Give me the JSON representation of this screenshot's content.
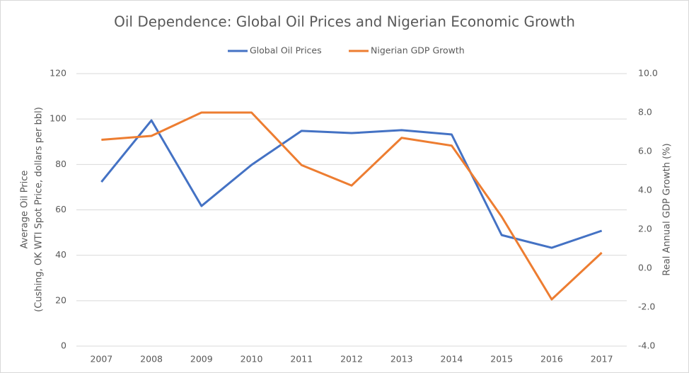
{
  "chart_data": {
    "type": "line",
    "title": "Oil Dependence:  Global Oil Prices and Nigerian Economic Growth",
    "categories": [
      "2007",
      "2008",
      "2009",
      "2010",
      "2011",
      "2012",
      "2013",
      "2014",
      "2015",
      "2016",
      "2017"
    ],
    "ylabel": [
      "Average Oil Price",
      "(Cushing, OK WTI Spot Price, dollars per bbl)"
    ],
    "y2label": "Real Annual GDP Growth (%)",
    "ylim": [
      0,
      120
    ],
    "yticks": [
      0,
      20,
      40,
      60,
      80,
      100,
      120
    ],
    "y2lim": [
      -4,
      10
    ],
    "y2ticks": [
      {
        "value": -4,
        "label": "-4.0"
      },
      {
        "value": -2,
        "label": "-2.0"
      },
      {
        "value": 0,
        "label": "0.0"
      },
      {
        "value": 2,
        "label": "2.0"
      },
      {
        "value": 4,
        "label": "4.0"
      },
      {
        "value": 6,
        "label": "6.0"
      },
      {
        "value": 8,
        "label": "8.0"
      },
      {
        "value": 10,
        "label": "10.0"
      }
    ],
    "grid": true,
    "legend": "top",
    "series": [
      {
        "name": "Global Oil Prices",
        "color": "#4472c4",
        "values": [
          72.3,
          99.4,
          61.7,
          79.8,
          94.8,
          93.8,
          95.1,
          93.2,
          48.9,
          43.3,
          50.8
        ]
      },
      {
        "name": "Nigerian GDP Growth",
        "color": "#ed7d31",
        "axis": "y2",
        "values": [
          6.6,
          6.8,
          8.0,
          8.0,
          5.3,
          4.25,
          6.7,
          6.3,
          2.65,
          -1.6,
          0.8
        ]
      }
    ]
  }
}
